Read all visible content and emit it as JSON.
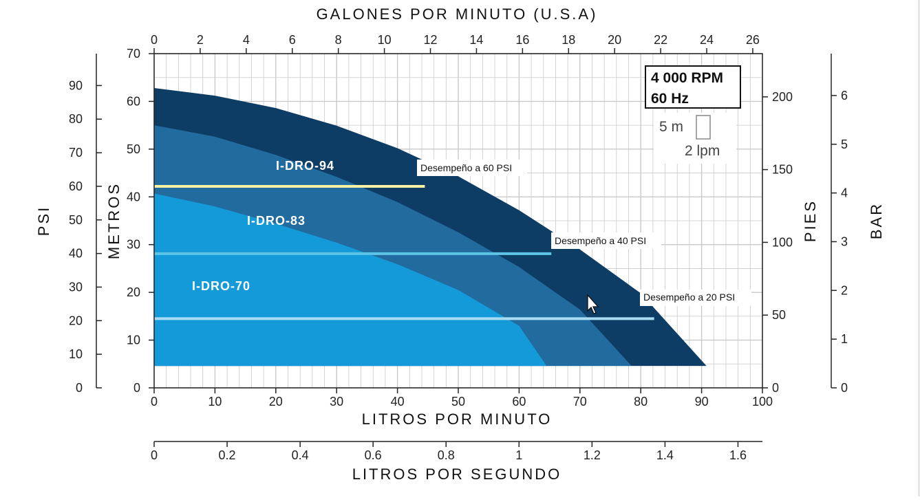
{
  "chart_data": {
    "type": "area",
    "title": "",
    "xlabel": "LITROS POR MINUTO",
    "ylabel": "METROS",
    "xlim": [
      0,
      100
    ],
    "ylim": [
      0,
      70
    ],
    "x_ticks": [
      "0",
      "10",
      "20",
      "30",
      "40",
      "50",
      "60",
      "70",
      "80",
      "90",
      "100"
    ],
    "y_ticks": [
      "0",
      "10",
      "20",
      "30",
      "40",
      "50",
      "60",
      "70"
    ],
    "grid": true,
    "secondary_axes": {
      "top": {
        "label": "GALONES POR MINUTO (U.S.A)",
        "ticks": [
          "0",
          "2",
          "4",
          "6",
          "8",
          "10",
          "12",
          "14",
          "16",
          "18",
          "20",
          "22",
          "24",
          "26"
        ],
        "unit_max": 26.42
      },
      "bottom": {
        "label": "LITROS POR SEGUNDO",
        "ticks": [
          "0",
          "0.2",
          "0.4",
          "0.6",
          "0.8",
          "1",
          "1.2",
          "1.4",
          "1.6"
        ],
        "unit_max": 1.667
      },
      "psi": {
        "label": "PSI",
        "ticks": [
          "0",
          "10",
          "20",
          "30",
          "40",
          "50",
          "60",
          "70",
          "80",
          "90"
        ],
        "unit_max": 99.5
      },
      "pies": {
        "label": "PIES",
        "ticks": [
          "0",
          "50",
          "100",
          "150",
          "200"
        ],
        "unit_max": 229.7
      },
      "bar": {
        "label": "BAR",
        "ticks": [
          "0",
          "1",
          "2",
          "3",
          "4",
          "5",
          "6"
        ],
        "unit_max": 6.86
      }
    },
    "series": [
      {
        "name": "I-DRO-94",
        "color": "#0d3c64",
        "x": [
          0,
          10,
          20,
          30,
          40,
          50,
          60,
          70,
          80,
          90.8
        ],
        "y": [
          62.8,
          61.2,
          58.6,
          54.9,
          50.2,
          44.3,
          37.2,
          29.0,
          19.8,
          4.6
        ]
      },
      {
        "name": "I-DRO-83",
        "color": "#216b9e",
        "x": [
          0,
          10,
          20,
          30,
          40,
          50,
          60,
          70,
          78.5
        ],
        "y": [
          55.0,
          52.6,
          48.8,
          44.2,
          38.9,
          32.6,
          25.3,
          16.4,
          4.6
        ]
      },
      {
        "name": "I-DRO-70",
        "color": "#159ad9",
        "x": [
          0,
          10,
          20,
          30,
          40,
          50,
          60,
          64.5
        ],
        "y": [
          40.7,
          38.0,
          34.4,
          30.4,
          25.9,
          20.5,
          13.0,
          4.6
        ]
      }
    ],
    "base_level": 4.6,
    "annotations": [
      {
        "label": "Desempeño a 60 PSI",
        "y": 42.2,
        "x_end": 44.5,
        "color": "#f4f1a4"
      },
      {
        "label": "Desempeño a 40 PSI",
        "y": 28.1,
        "x_end": 65.3,
        "color": "#5ec4e6"
      },
      {
        "label": "Desempeño a 20 PSI",
        "y": 14.5,
        "x_end": 82.2,
        "color": "#a9dcf2"
      }
    ],
    "info_box": {
      "line1": "4 000 RPM",
      "line2": "60 Hz"
    },
    "grid_scale": {
      "height_label": "5 m",
      "width_label": "2 lpm"
    }
  }
}
